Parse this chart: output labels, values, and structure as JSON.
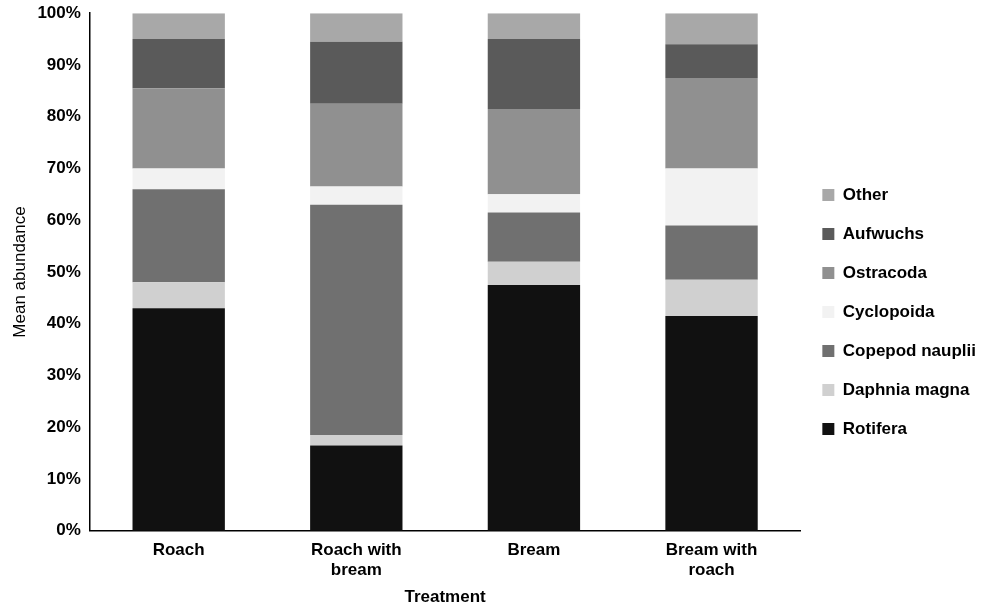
{
  "chart_data": {
    "type": "bar",
    "stacked": true,
    "xlabel": "Treatment",
    "ylabel": "Mean abundance",
    "categories": [
      "Roach",
      "Roach with bream",
      "Bream",
      "Bream with roach"
    ],
    "series": [
      {
        "name": "Rotifera",
        "color": "#111111",
        "values": [
          43,
          16.5,
          47.5,
          41.5
        ]
      },
      {
        "name": "Daphnia magna",
        "color": "#d0d0d0",
        "values": [
          5,
          2,
          4.5,
          7
        ]
      },
      {
        "name": "Copepod nauplii",
        "color": "#707070",
        "values": [
          18,
          44.5,
          9.5,
          10.5
        ]
      },
      {
        "name": "Cyclopoida",
        "color": "#f2f2f2",
        "values": [
          4,
          3.5,
          3.5,
          11
        ]
      },
      {
        "name": "Ostracoda",
        "color": "#909090",
        "values": [
          15.5,
          16,
          16.5,
          17.5
        ]
      },
      {
        "name": "Aufwuchs",
        "color": "#5a5a5a",
        "values": [
          9.5,
          12,
          13.5,
          6.5
        ]
      },
      {
        "name": "Other",
        "color": "#a8a8a8",
        "values": [
          5,
          5.5,
          5,
          6
        ]
      }
    ],
    "ylim": [
      0,
      100
    ],
    "yticks": [
      {
        "value": 0,
        "label": "0%"
      },
      {
        "value": 10,
        "label": "10%"
      },
      {
        "value": 20,
        "label": "20%"
      },
      {
        "value": 30,
        "label": "30%"
      },
      {
        "value": 40,
        "label": "40%"
      },
      {
        "value": 50,
        "label": "50%"
      },
      {
        "value": 60,
        "label": "60%"
      },
      {
        "value": 70,
        "label": "70%"
      },
      {
        "value": 80,
        "label": "80%"
      },
      {
        "value": 90,
        "label": "90%"
      },
      {
        "value": 100,
        "label": "100%"
      }
    ],
    "grid": false,
    "legend": "right"
  }
}
